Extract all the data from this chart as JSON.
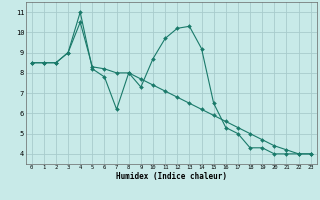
{
  "xlabel": "Humidex (Indice chaleur)",
  "background_color": "#c8eae8",
  "grid_color": "#a8cccc",
  "line_color": "#1a7a6a",
  "xlim": [
    -0.5,
    23.5
  ],
  "ylim": [
    3.5,
    11.5
  ],
  "xticks": [
    0,
    1,
    2,
    3,
    4,
    5,
    6,
    7,
    8,
    9,
    10,
    11,
    12,
    13,
    14,
    15,
    16,
    17,
    18,
    19,
    20,
    21,
    22,
    23
  ],
  "yticks": [
    4,
    5,
    6,
    7,
    8,
    9,
    10,
    11
  ],
  "line1_x": [
    0,
    1,
    2,
    3,
    4,
    5,
    6,
    7,
    8,
    9,
    10,
    11,
    12,
    13,
    14,
    15,
    16,
    17,
    18,
    19,
    20,
    21,
    22,
    23
  ],
  "line1_y": [
    8.5,
    8.5,
    8.5,
    9.0,
    11.0,
    8.2,
    7.8,
    6.2,
    8.0,
    7.3,
    8.7,
    9.7,
    10.2,
    10.3,
    9.2,
    6.5,
    5.3,
    5.0,
    4.3,
    4.3,
    4.0,
    4.0,
    4.0,
    4.0
  ],
  "line2_x": [
    0,
    1,
    2,
    3,
    4,
    5,
    6,
    7,
    8,
    9,
    10,
    11,
    12,
    13,
    14,
    15,
    16,
    17,
    18,
    19,
    20,
    21,
    22,
    23
  ],
  "line2_y": [
    8.5,
    8.5,
    8.5,
    9.0,
    10.5,
    8.3,
    8.2,
    8.0,
    8.0,
    7.7,
    7.4,
    7.1,
    6.8,
    6.5,
    6.2,
    5.9,
    5.6,
    5.3,
    5.0,
    4.7,
    4.4,
    4.2,
    4.0,
    4.0
  ]
}
